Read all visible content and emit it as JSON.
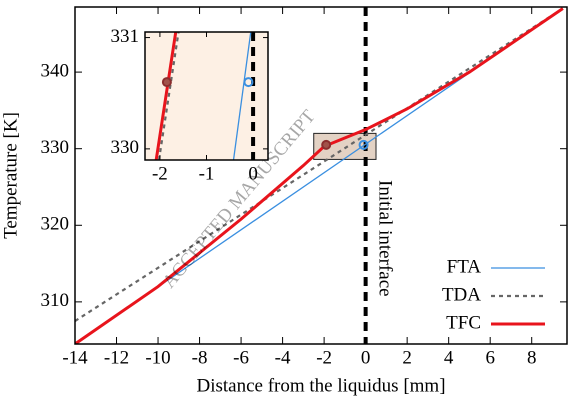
{
  "chart_data": [
    {
      "type": "line",
      "xlabel": "Distance from the liquidus [mm]",
      "ylabel": "Temperature [K]",
      "watermark": "ACCEPTED MANUSCRIPT",
      "xlim": [
        -14,
        9.7
      ],
      "ylim": [
        304.5,
        348.5
      ],
      "xticks": [
        -14,
        -12,
        -10,
        -8,
        -6,
        -4,
        -2,
        0,
        2,
        4,
        6,
        8
      ],
      "yticks": [
        310,
        320,
        330,
        340
      ],
      "series": [
        {
          "name": "FTA",
          "color": "#3a8fe0",
          "style": "solid",
          "width": 1.3,
          "x": [
            -14,
            9.5
          ],
          "values": [
            304.5,
            348.3
          ]
        },
        {
          "name": "TDA",
          "color": "#666666",
          "style": "dashed",
          "width": 2.2,
          "x": [
            -14,
            9.5
          ],
          "values": [
            307.5,
            348.3
          ]
        },
        {
          "name": "TFC",
          "color": "#e8141c",
          "style": "solid",
          "width": 3,
          "x": [
            -14,
            -10,
            -6,
            -3,
            -2,
            0,
            2,
            5,
            9.5
          ],
          "values": [
            304.5,
            312,
            320.8,
            327.8,
            330.3,
            332.5,
            335.2,
            340,
            348.3
          ]
        }
      ],
      "markers": [
        {
          "color": "#8b2e2e",
          "x": -1.9,
          "value": 330.5
        },
        {
          "color": "#3a8fe0",
          "x": -0.1,
          "value": 330.5
        }
      ],
      "vline": {
        "x": 0,
        "label": "Initial interface"
      },
      "highlight": {
        "xlim": [
          -2.5,
          0.5
        ],
        "ylim": [
          328.6,
          332
        ]
      },
      "legend": "lower right"
    },
    {
      "type": "line",
      "xlim": [
        -2.32,
        0.32
      ],
      "ylim": [
        329.9,
        331.05
      ],
      "xticks": [
        -2,
        -1,
        0
      ],
      "yticks": [
        330,
        331
      ],
      "series": [
        {
          "color": "#3a8fe0",
          "style": "solid",
          "width": 1.3,
          "x": [
            -0.42,
            -0.05
          ],
          "values": [
            329.9,
            331.05
          ]
        },
        {
          "color": "#666666",
          "style": "dashed",
          "width": 2.2,
          "x": [
            -2.02,
            -1.6
          ],
          "values": [
            329.9,
            331.05
          ]
        },
        {
          "color": "#e8141c",
          "style": "solid",
          "width": 3,
          "x": [
            -2.08,
            -1.66
          ],
          "values": [
            329.9,
            331.05
          ]
        }
      ],
      "markers": [
        {
          "color": "#8b2e2e",
          "x": -1.85,
          "value": 330.6
        },
        {
          "color": "#3a8fe0",
          "x": -0.1,
          "value": 330.6
        }
      ],
      "vline": {
        "x": 0
      },
      "background": "#fdf0e4"
    }
  ]
}
